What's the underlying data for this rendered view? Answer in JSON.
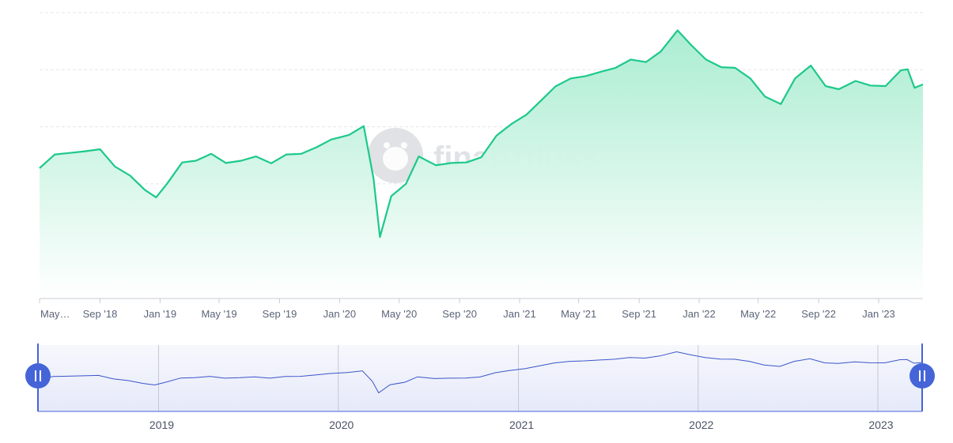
{
  "watermark": {
    "brand": "finanzfluss",
    "logo_icon": "hippo-logo-icon"
  },
  "colors": {
    "line": "#1dc98a",
    "area_top": "#a7ecd0",
    "area_bottom": "#ffffff",
    "grid": "#e3e6ea",
    "navigator_line": "#3b55c9",
    "navigator_fill": "#e9ebfa",
    "handle": "#4464d8"
  },
  "chart_data": {
    "type": "area",
    "x_start": "2018-05-01",
    "x_end": "2023-04-01",
    "x_tick_labels": [
      "May…",
      "Sep '18",
      "Jan '19",
      "May '19",
      "Sep '19",
      "Jan '20",
      "May '20",
      "Sep '20",
      "Jan '21",
      "May '21",
      "Sep '21",
      "Jan '22",
      "May '22",
      "Sep '22",
      "Jan '23"
    ],
    "x_tick_dates": [
      "2018-05-01",
      "2018-09-01",
      "2019-01-01",
      "2019-05-01",
      "2019-09-01",
      "2020-01-01",
      "2020-05-01",
      "2020-09-01",
      "2021-01-01",
      "2021-05-01",
      "2021-09-01",
      "2022-01-01",
      "2022-05-01",
      "2022-09-01",
      "2023-01-01"
    ],
    "y_range": [
      0,
      100
    ],
    "grid": true,
    "series": [
      {
        "x": [
          "2018-05-01",
          "2018-06-01",
          "2018-07-01",
          "2018-08-01",
          "2018-09-01",
          "2018-10-01",
          "2018-11-01",
          "2018-12-01",
          "2018-12-24",
          "2019-01-15",
          "2019-02-15",
          "2019-03-15",
          "2019-04-15",
          "2019-05-15",
          "2019-06-15",
          "2019-07-15",
          "2019-08-15",
          "2019-09-15",
          "2019-10-15",
          "2019-11-15",
          "2019-12-15",
          "2020-01-20",
          "2020-02-19",
          "2020-03-10",
          "2020-03-23",
          "2020-04-15",
          "2020-05-15",
          "2020-06-10",
          "2020-07-15",
          "2020-08-15",
          "2020-09-15",
          "2020-10-15",
          "2020-11-15",
          "2020-12-15",
          "2021-01-15",
          "2021-02-15",
          "2021-03-15",
          "2021-04-15",
          "2021-05-15",
          "2021-06-15",
          "2021-07-15",
          "2021-08-15",
          "2021-09-15",
          "2021-10-15",
          "2021-11-18",
          "2021-12-15",
          "2022-01-15",
          "2022-02-15",
          "2022-03-15",
          "2022-04-15",
          "2022-05-15",
          "2022-06-16",
          "2022-07-15",
          "2022-08-16",
          "2022-09-15",
          "2022-10-12",
          "2022-11-15",
          "2022-12-15",
          "2023-01-15",
          "2023-02-15",
          "2023-03-01",
          "2023-03-15",
          "2023-04-01"
        ],
        "values": [
          45.6,
          50.4,
          50.9,
          51.5,
          52.2,
          46.2,
          43.0,
          38.0,
          35.4,
          40.1,
          47.6,
          48.2,
          50.6,
          47.4,
          48.2,
          49.7,
          47.3,
          50.4,
          50.6,
          52.9,
          55.6,
          57.2,
          60.3,
          42.0,
          21.5,
          35.8,
          40.1,
          49.7,
          46.6,
          47.4,
          47.6,
          49.4,
          57.0,
          61.0,
          64.3,
          69.5,
          74.2,
          77.0,
          77.8,
          79.3,
          80.7,
          83.6,
          82.7,
          86.4,
          93.8,
          88.8,
          83.6,
          80.9,
          80.7,
          77.0,
          70.6,
          68.0,
          77.0,
          81.5,
          74.3,
          73.2,
          76.1,
          74.5,
          74.3,
          79.8,
          80.2,
          73.7,
          74.9
        ]
      }
    ]
  },
  "navigator": {
    "year_labels": [
      "2019",
      "2020",
      "2021",
      "2022",
      "2023"
    ],
    "year_dates": [
      "2019-01-01",
      "2020-01-01",
      "2021-01-01",
      "2022-01-01",
      "2023-01-01"
    ],
    "left_handle_icon": "left-range-handle-icon",
    "right_handle_icon": "right-range-handle-icon"
  }
}
